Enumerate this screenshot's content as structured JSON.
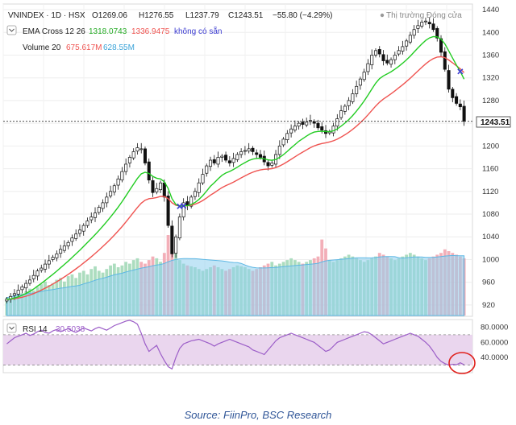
{
  "header": {
    "symbol": "VNINDEX · 1D · HSX",
    "ohlc": {
      "open": "O1269.06",
      "high": "H1276.55",
      "low": "L1237.79",
      "close": "C1243.51",
      "change": "−55.80 (−4.29%)"
    },
    "market_status": "Thị trường Đóng cửa",
    "indicators": [
      {
        "label": "EMA Cross 12 26",
        "values": [
          "1318.0743",
          "1336.9475",
          "không có sẵn"
        ],
        "colors": [
          "#2ecc2e",
          "#ef5350",
          "#3a3ad0"
        ]
      },
      {
        "label": "Volume 20",
        "values": [
          "675.617M",
          "628.55M"
        ],
        "colors": [
          "#ef5350",
          "#3ba3d8"
        ]
      }
    ]
  },
  "price_label": "1243.51",
  "rsi_label": {
    "name": "RSI 14",
    "value": "30.5038"
  },
  "source_caption": "Source: FiinPro, BSC Research",
  "colors": {
    "up": "#000000",
    "down": "#000000",
    "ema_fast": "#22cc22",
    "ema_slow": "#ef5350",
    "volume_ma": "#6ec3ea",
    "volume_up": "#a3d9b8",
    "volume_down": "#f2a6b0",
    "rsi_line": "#9c5ec8",
    "rsi_band": "#ead6ee",
    "highlight_circle": "#e0201c",
    "caption": "#2f5597"
  },
  "chart_data": [
    {
      "type": "line",
      "panel": "price",
      "title": "VNINDEX · 1D · HSX",
      "yticks": [
        920,
        960,
        1000,
        1040,
        1080,
        1120,
        1160,
        1200,
        1240,
        1280,
        1320,
        1360,
        1400,
        1440
      ],
      "ylim": [
        900,
        1450
      ],
      "last_price": 1243.51,
      "ema_fast_last": 1318.0743,
      "ema_slow_last": 1336.9475,
      "close_series": [
        930,
        935,
        940,
        946,
        952,
        958,
        964,
        972,
        980,
        985,
        992,
        998,
        1004,
        1010,
        1018,
        1024,
        1030,
        1038,
        1045,
        1052,
        1060,
        1068,
        1075,
        1082,
        1092,
        1100,
        1110,
        1120,
        1130,
        1142,
        1155,
        1168,
        1180,
        1190,
        1197,
        1195,
        1170,
        1140,
        1118,
        1125,
        1135,
        1110,
        1060,
        1010,
        1040,
        1075,
        1100,
        1095,
        1110,
        1120,
        1135,
        1150,
        1165,
        1175,
        1170,
        1180,
        1182,
        1175,
        1170,
        1178,
        1185,
        1190,
        1192,
        1195,
        1190,
        1185,
        1180,
        1172,
        1165,
        1170,
        1185,
        1200,
        1212,
        1222,
        1230,
        1235,
        1240,
        1238,
        1242,
        1245,
        1240,
        1232,
        1228,
        1222,
        1225,
        1235,
        1248,
        1262,
        1270,
        1280,
        1292,
        1305,
        1318,
        1330,
        1345,
        1360,
        1368,
        1362,
        1350,
        1346,
        1352,
        1360,
        1368,
        1375,
        1385,
        1395,
        1405,
        1412,
        1418,
        1420,
        1415,
        1405,
        1390,
        1365,
        1335,
        1300,
        1285,
        1275,
        1269,
        1243.5
      ]
    },
    {
      "type": "bar",
      "panel": "volume",
      "title": "Volume 20",
      "values": [
        20,
        22,
        24,
        26,
        25,
        27,
        30,
        28,
        32,
        35,
        38,
        34,
        36,
        40,
        42,
        38,
        44,
        46,
        42,
        48,
        50,
        46,
        52,
        55,
        50,
        48,
        52,
        56,
        58,
        54,
        56,
        60,
        58,
        62,
        64,
        60,
        58,
        62,
        66,
        64,
        60,
        70,
        90,
        85,
        70,
        62,
        58,
        56,
        55,
        54,
        52,
        50,
        52,
        54,
        56,
        54,
        52,
        50,
        52,
        54,
        56,
        55,
        54,
        52,
        50,
        52,
        54,
        56,
        58,
        60,
        56,
        58,
        60,
        62,
        64,
        62,
        60,
        58,
        60,
        62,
        64,
        66,
        85,
        75,
        62,
        60,
        62,
        64,
        66,
        68,
        66,
        64,
        62,
        60,
        62,
        64,
        66,
        70,
        68,
        66,
        64,
        62,
        64,
        66,
        68,
        70,
        68,
        66,
        64,
        62,
        64,
        66,
        68,
        70,
        74,
        72,
        70,
        68,
        66,
        64
      ],
      "ma_last": "628.55M",
      "last": "675.617M"
    },
    {
      "type": "line",
      "panel": "rsi",
      "title": "RSI 14",
      "yticks": [
        40,
        60,
        80
      ],
      "ylim": [
        20,
        90
      ],
      "band": [
        30,
        70
      ],
      "last": 30.5038,
      "values": [
        58,
        62,
        66,
        68,
        70,
        72,
        69,
        71,
        74,
        76,
        73,
        72,
        75,
        77,
        74,
        76,
        78,
        75,
        73,
        76,
        79,
        77,
        75,
        78,
        80,
        78,
        76,
        79,
        82,
        84,
        86,
        88,
        89,
        87,
        84,
        72,
        58,
        48,
        52,
        56,
        45,
        36,
        28,
        25,
        40,
        52,
        58,
        60,
        62,
        63,
        64,
        62,
        60,
        58,
        55,
        58,
        60,
        62,
        64,
        62,
        60,
        58,
        56,
        54,
        50,
        48,
        46,
        44,
        50,
        56,
        62,
        66,
        68,
        70,
        72,
        70,
        68,
        66,
        64,
        62,
        60,
        56,
        52,
        48,
        50,
        55,
        60,
        62,
        64,
        66,
        68,
        70,
        72,
        74,
        73,
        70,
        66,
        62,
        58,
        60,
        62,
        64,
        66,
        68,
        70,
        72,
        70,
        68,
        64,
        60,
        55,
        48,
        40,
        35,
        32,
        30,
        31,
        30.5,
        33,
        30.5
      ]
    }
  ]
}
